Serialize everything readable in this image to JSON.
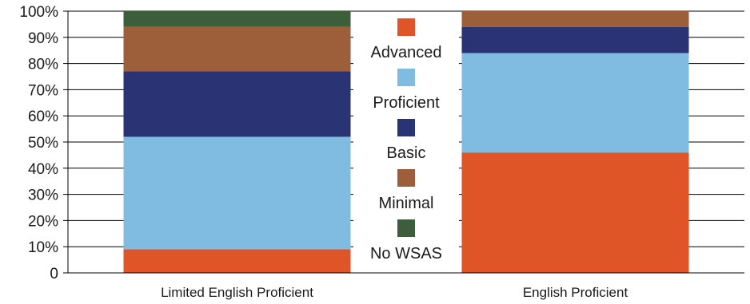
{
  "chart_data": {
    "type": "bar",
    "stacked": true,
    "percent_stacked": true,
    "categories": [
      "Limited English Proficient",
      "English Proficient"
    ],
    "series": [
      {
        "name": "Advanced",
        "color": "#E05528",
        "values": [
          9,
          46
        ]
      },
      {
        "name": "Proficient",
        "color": "#80BCE2",
        "values": [
          43,
          38
        ]
      },
      {
        "name": "Basic",
        "color": "#2A3373",
        "values": [
          25,
          10
        ]
      },
      {
        "name": "Minimal",
        "color": "#9C5F3A",
        "values": [
          17,
          6
        ]
      },
      {
        "name": "No WSAS",
        "color": "#3D5E3A",
        "values": [
          6,
          0
        ]
      }
    ],
    "y_ticks": [
      "0",
      "10%",
      "20%",
      "30%",
      "40%",
      "50%",
      "60%",
      "70%",
      "80%",
      "90%",
      "100%"
    ],
    "ylim": [
      0,
      100
    ],
    "grid": true,
    "legend_position": "center",
    "title": "",
    "xlabel": "",
    "ylabel": ""
  }
}
